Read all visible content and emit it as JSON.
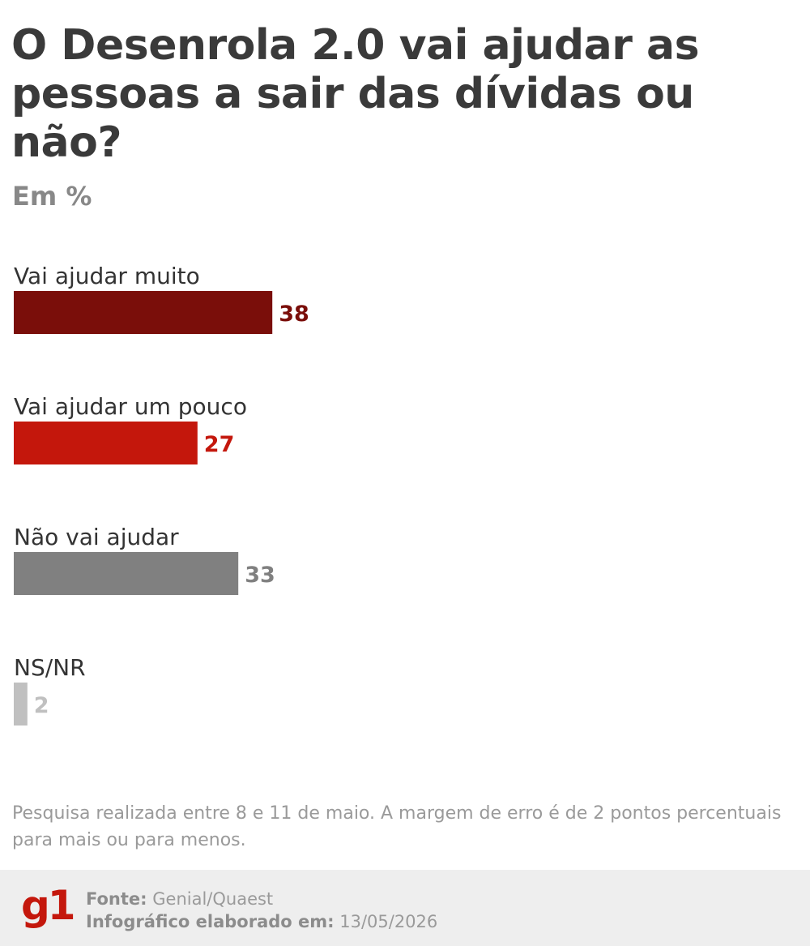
{
  "chart_data": {
    "type": "bar",
    "orientation": "horizontal",
    "title": "O Desenrola 2.0 vai ajudar as pessoas a sair das dívidas ou não?",
    "subtitle": "Em %",
    "categories": [
      "Vai ajudar muito",
      "Vai ajudar um pouco",
      "Não vai ajudar",
      "NS/NR"
    ],
    "values": [
      38,
      27,
      33,
      2
    ],
    "colors": [
      "#7a0e0a",
      "#c4170c",
      "#808080",
      "#c0c0c0"
    ],
    "xlim": [
      0,
      100
    ],
    "grid": false,
    "legend": "none"
  },
  "note": "Pesquisa realizada entre 8 e 11 de maio. A margem de erro é de 2 pontos percentuais para mais ou para menos.",
  "footer": {
    "logo": "g1",
    "source_label": "Fonte:",
    "source_value": "Genial/Quaest",
    "date_label": "Infográfico elaborado em:",
    "date_value": "13/05/2026"
  }
}
